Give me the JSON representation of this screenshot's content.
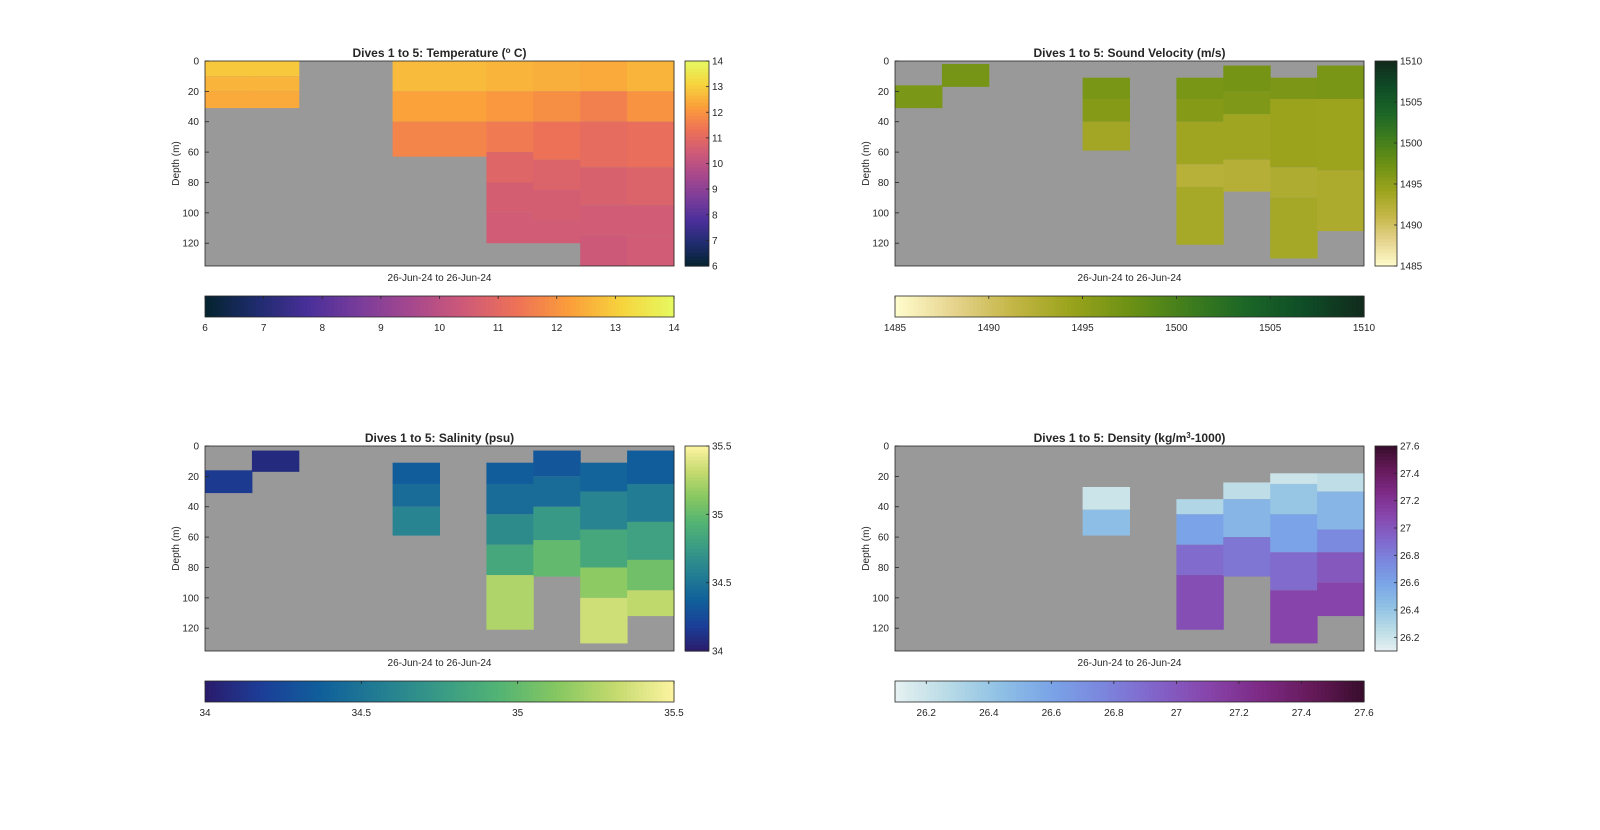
{
  "page": {
    "background": "#ffffff",
    "plot_background": "#999999"
  },
  "chart_data": [
    {
      "type": "heatmap",
      "title_prefix": "Dives 1 to 5: Temperature (",
      "title_sup": "o",
      "title_suffix": " C)",
      "xlabel": "26-Jun-24 to 26-Jun-24",
      "ylabel": "Depth (m)",
      "ylim": [
        0,
        135
      ],
      "yticks": [
        0,
        20,
        40,
        60,
        80,
        100,
        120
      ],
      "colormap": "thermal",
      "clim": [
        6,
        14
      ],
      "cbar_ticks": [
        6,
        7,
        8,
        9,
        10,
        11,
        12,
        13,
        14
      ],
      "h_cbar_ticks": [
        6,
        7,
        8,
        9,
        10,
        11,
        12,
        13,
        14
      ],
      "columns": 10,
      "cells": [
        {
          "col": 0,
          "d0": 0,
          "d1": 10,
          "v": 12.9
        },
        {
          "col": 0,
          "d0": 10,
          "d1": 20,
          "v": 12.6
        },
        {
          "col": 0,
          "d0": 20,
          "d1": 31,
          "v": 12.4
        },
        {
          "col": 1,
          "d0": 0,
          "d1": 10,
          "v": 12.9
        },
        {
          "col": 1,
          "d0": 10,
          "d1": 20,
          "v": 12.6
        },
        {
          "col": 1,
          "d0": 20,
          "d1": 31,
          "v": 12.4
        },
        {
          "col": 4,
          "d0": 0,
          "d1": 20,
          "v": 12.7
        },
        {
          "col": 4,
          "d0": 20,
          "d1": 40,
          "v": 12.3
        },
        {
          "col": 4,
          "d0": 40,
          "d1": 63,
          "v": 11.7
        },
        {
          "col": 5,
          "d0": 0,
          "d1": 20,
          "v": 12.7
        },
        {
          "col": 5,
          "d0": 20,
          "d1": 40,
          "v": 12.3
        },
        {
          "col": 5,
          "d0": 40,
          "d1": 63,
          "v": 11.7
        },
        {
          "col": 6,
          "d0": 0,
          "d1": 20,
          "v": 12.6
        },
        {
          "col": 6,
          "d0": 20,
          "d1": 40,
          "v": 12.1
        },
        {
          "col": 6,
          "d0": 40,
          "d1": 60,
          "v": 11.5
        },
        {
          "col": 6,
          "d0": 60,
          "d1": 80,
          "v": 10.9
        },
        {
          "col": 6,
          "d0": 80,
          "d1": 100,
          "v": 10.6
        },
        {
          "col": 6,
          "d0": 100,
          "d1": 120,
          "v": 10.5
        },
        {
          "col": 7,
          "d0": 0,
          "d1": 20,
          "v": 12.5
        },
        {
          "col": 7,
          "d0": 20,
          "d1": 40,
          "v": 11.9
        },
        {
          "col": 7,
          "d0": 40,
          "d1": 65,
          "v": 11.3
        },
        {
          "col": 7,
          "d0": 65,
          "d1": 85,
          "v": 10.8
        },
        {
          "col": 7,
          "d0": 85,
          "d1": 105,
          "v": 10.6
        },
        {
          "col": 7,
          "d0": 105,
          "d1": 120,
          "v": 10.5
        },
        {
          "col": 8,
          "d0": 0,
          "d1": 20,
          "v": 12.4
        },
        {
          "col": 8,
          "d0": 20,
          "d1": 40,
          "v": 11.6
        },
        {
          "col": 8,
          "d0": 40,
          "d1": 70,
          "v": 11.1
        },
        {
          "col": 8,
          "d0": 70,
          "d1": 95,
          "v": 10.7
        },
        {
          "col": 8,
          "d0": 95,
          "d1": 115,
          "v": 10.5
        },
        {
          "col": 8,
          "d0": 115,
          "d1": 135,
          "v": 10.4
        },
        {
          "col": 9,
          "d0": 0,
          "d1": 20,
          "v": 12.6
        },
        {
          "col": 9,
          "d0": 20,
          "d1": 40,
          "v": 12.0
        },
        {
          "col": 9,
          "d0": 40,
          "d1": 70,
          "v": 11.2
        },
        {
          "col": 9,
          "d0": 70,
          "d1": 95,
          "v": 10.8
        },
        {
          "col": 9,
          "d0": 95,
          "d1": 115,
          "v": 10.5
        },
        {
          "col": 9,
          "d0": 115,
          "d1": 135,
          "v": 10.5
        }
      ]
    },
    {
      "type": "heatmap",
      "title_prefix": "Dives 1 to 5: Sound Velocity (m/s)",
      "title_sup": "",
      "title_suffix": "",
      "xlabel": "26-Jun-24 to 26-Jun-24",
      "ylabel": "Depth (m)",
      "ylim": [
        0,
        135
      ],
      "yticks": [
        0,
        20,
        40,
        60,
        80,
        100,
        120
      ],
      "colormap": "speed",
      "clim": [
        1485,
        1510
      ],
      "cbar_ticks": [
        1485,
        1490,
        1495,
        1500,
        1505,
        1510
      ],
      "h_cbar_ticks": [
        1485,
        1490,
        1495,
        1500,
        1505,
        1510
      ],
      "columns": 10,
      "cells": [
        {
          "col": 0,
          "d0": 16,
          "d1": 31,
          "v": 1496.5
        },
        {
          "col": 1,
          "d0": 2,
          "d1": 17,
          "v": 1496.8
        },
        {
          "col": 4,
          "d0": 11,
          "d1": 25,
          "v": 1496.6
        },
        {
          "col": 4,
          "d0": 25,
          "d1": 40,
          "v": 1495.8
        },
        {
          "col": 4,
          "d0": 40,
          "d1": 59,
          "v": 1493.8
        },
        {
          "col": 6,
          "d0": 11,
          "d1": 25,
          "v": 1496.6
        },
        {
          "col": 6,
          "d0": 25,
          "d1": 40,
          "v": 1495.8
        },
        {
          "col": 6,
          "d0": 40,
          "d1": 68,
          "v": 1494.0
        },
        {
          "col": 6,
          "d0": 68,
          "d1": 83,
          "v": 1492.2
        },
        {
          "col": 6,
          "d0": 83,
          "d1": 121,
          "v": 1493.5
        },
        {
          "col": 7,
          "d0": 3,
          "d1": 20,
          "v": 1496.9
        },
        {
          "col": 7,
          "d0": 20,
          "d1": 35,
          "v": 1496.2
        },
        {
          "col": 7,
          "d0": 35,
          "d1": 65,
          "v": 1494.0
        },
        {
          "col": 7,
          "d0": 65,
          "d1": 86,
          "v": 1492.4
        },
        {
          "col": 8,
          "d0": 11,
          "d1": 25,
          "v": 1496.4
        },
        {
          "col": 8,
          "d0": 25,
          "d1": 70,
          "v": 1494.3
        },
        {
          "col": 8,
          "d0": 70,
          "d1": 90,
          "v": 1492.8
        },
        {
          "col": 8,
          "d0": 90,
          "d1": 130,
          "v": 1493.6
        },
        {
          "col": 9,
          "d0": 3,
          "d1": 25,
          "v": 1496.6
        },
        {
          "col": 9,
          "d0": 25,
          "d1": 72,
          "v": 1494.2
        },
        {
          "col": 9,
          "d0": 72,
          "d1": 112,
          "v": 1493.0
        }
      ]
    },
    {
      "type": "heatmap",
      "title_prefix": "Dives 1 to 5: Salinity (psu)",
      "title_sup": "",
      "title_suffix": "",
      "xlabel": "26-Jun-24 to 26-Jun-24",
      "ylabel": "Depth (m)",
      "ylim": [
        0,
        135
      ],
      "yticks": [
        0,
        20,
        40,
        60,
        80,
        100,
        120
      ],
      "colormap": "haline",
      "clim": [
        34,
        35.5
      ],
      "cbar_ticks": [
        34,
        34.5,
        35,
        35.5
      ],
      "h_cbar_ticks": [
        34,
        34.5,
        35,
        35.5
      ],
      "columns": 10,
      "cells": [
        {
          "col": 0,
          "d0": 16,
          "d1": 31,
          "v": 34.16
        },
        {
          "col": 1,
          "d0": 3,
          "d1": 17,
          "v": 34.08
        },
        {
          "col": 4,
          "d0": 11,
          "d1": 25,
          "v": 34.35
        },
        {
          "col": 4,
          "d0": 25,
          "d1": 40,
          "v": 34.45
        },
        {
          "col": 4,
          "d0": 40,
          "d1": 59,
          "v": 34.6
        },
        {
          "col": 6,
          "d0": 11,
          "d1": 25,
          "v": 34.35
        },
        {
          "col": 6,
          "d0": 25,
          "d1": 45,
          "v": 34.45
        },
        {
          "col": 6,
          "d0": 45,
          "d1": 65,
          "v": 34.65
        },
        {
          "col": 6,
          "d0": 65,
          "d1": 85,
          "v": 34.85
        },
        {
          "col": 6,
          "d0": 85,
          "d1": 121,
          "v": 35.25
        },
        {
          "col": 7,
          "d0": 3,
          "d1": 20,
          "v": 34.32
        },
        {
          "col": 7,
          "d0": 20,
          "d1": 40,
          "v": 34.45
        },
        {
          "col": 7,
          "d0": 40,
          "d1": 62,
          "v": 34.75
        },
        {
          "col": 7,
          "d0": 62,
          "d1": 86,
          "v": 35.0
        },
        {
          "col": 8,
          "d0": 11,
          "d1": 30,
          "v": 34.4
        },
        {
          "col": 8,
          "d0": 30,
          "d1": 55,
          "v": 34.6
        },
        {
          "col": 8,
          "d0": 55,
          "d1": 80,
          "v": 34.85
        },
        {
          "col": 8,
          "d0": 80,
          "d1": 100,
          "v": 35.15
        },
        {
          "col": 8,
          "d0": 100,
          "d1": 130,
          "v": 35.35
        },
        {
          "col": 9,
          "d0": 3,
          "d1": 25,
          "v": 34.35
        },
        {
          "col": 9,
          "d0": 25,
          "d1": 50,
          "v": 34.55
        },
        {
          "col": 9,
          "d0": 50,
          "d1": 75,
          "v": 34.8
        },
        {
          "col": 9,
          "d0": 75,
          "d1": 95,
          "v": 35.05
        },
        {
          "col": 9,
          "d0": 95,
          "d1": 112,
          "v": 35.3
        }
      ]
    },
    {
      "type": "heatmap",
      "title_prefix": "Dives 1 to 5: Density (kg/m",
      "title_sup": "3",
      "title_suffix": "-1000)",
      "xlabel": "26-Jun-24 to 26-Jun-24",
      "ylabel": "Depth (m)",
      "ylim": [
        0,
        135
      ],
      "yticks": [
        0,
        20,
        40,
        60,
        80,
        100,
        120
      ],
      "colormap": "dense",
      "clim": [
        26.1,
        27.6
      ],
      "cbar_ticks": [
        26.2,
        26.4,
        26.6,
        26.8,
        27,
        27.2,
        27.4,
        27.6
      ],
      "h_cbar_ticks": [
        26.2,
        26.4,
        26.6,
        26.8,
        27,
        27.2,
        27.4,
        27.6
      ],
      "columns": 10,
      "cells": [
        {
          "col": 4,
          "d0": 27,
          "d1": 42,
          "v": 26.2
        },
        {
          "col": 4,
          "d0": 42,
          "d1": 59,
          "v": 26.45
        },
        {
          "col": 6,
          "d0": 35,
          "d1": 45,
          "v": 26.3
        },
        {
          "col": 6,
          "d0": 45,
          "d1": 65,
          "v": 26.6
        },
        {
          "col": 6,
          "d0": 65,
          "d1": 85,
          "v": 26.9
        },
        {
          "col": 6,
          "d0": 85,
          "d1": 121,
          "v": 27.05
        },
        {
          "col": 7,
          "d0": 24,
          "d1": 35,
          "v": 26.25
        },
        {
          "col": 7,
          "d0": 35,
          "d1": 60,
          "v": 26.5
        },
        {
          "col": 7,
          "d0": 60,
          "d1": 86,
          "v": 26.85
        },
        {
          "col": 8,
          "d0": 18,
          "d1": 25,
          "v": 26.2
        },
        {
          "col": 8,
          "d0": 25,
          "d1": 45,
          "v": 26.4
        },
        {
          "col": 8,
          "d0": 45,
          "d1": 70,
          "v": 26.6
        },
        {
          "col": 8,
          "d0": 70,
          "d1": 95,
          "v": 26.9
        },
        {
          "col": 8,
          "d0": 95,
          "d1": 130,
          "v": 27.1
        },
        {
          "col": 9,
          "d0": 18,
          "d1": 30,
          "v": 26.25
        },
        {
          "col": 9,
          "d0": 30,
          "d1": 55,
          "v": 26.5
        },
        {
          "col": 9,
          "d0": 55,
          "d1": 70,
          "v": 26.75
        },
        {
          "col": 9,
          "d0": 70,
          "d1": 90,
          "v": 27.0
        },
        {
          "col": 9,
          "d0": 90,
          "d1": 112,
          "v": 27.1
        }
      ]
    }
  ]
}
